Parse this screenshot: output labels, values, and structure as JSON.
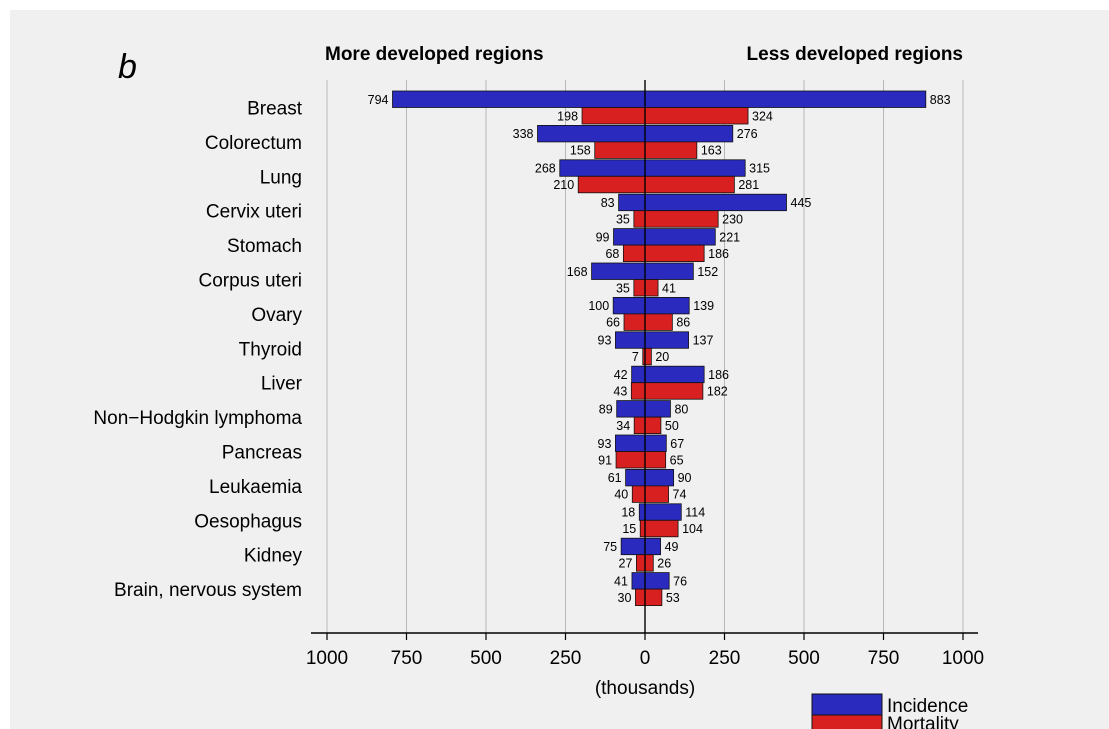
{
  "chart_data": {
    "type": "bar",
    "panel_letter": "b",
    "left_title": "More developed regions",
    "right_title": "Less developed regions",
    "xlabel": "(thousands)",
    "xlim": [
      -1000,
      1000
    ],
    "xticks": [
      -1000,
      -750,
      -500,
      -250,
      0,
      250,
      500,
      750,
      1000
    ],
    "xtick_labels": [
      "1000",
      "750",
      "500",
      "250",
      "0",
      "250",
      "500",
      "750",
      "1000"
    ],
    "grid": true,
    "categories": [
      "Breast",
      "Colorectum",
      "Lung",
      "Cervix uteri",
      "Stomach",
      "Corpus uteri",
      "Ovary",
      "Thyroid",
      "Liver",
      "Non−Hodgkin lymphoma",
      "Pancreas",
      "Leukaemia",
      "Oesophagus",
      "Kidney",
      "Brain, nervous system"
    ],
    "series": [
      {
        "name": "Incidence",
        "region": "More developed regions",
        "values": [
          794,
          338,
          268,
          83,
          99,
          168,
          100,
          93,
          42,
          89,
          93,
          61,
          18,
          75,
          41
        ]
      },
      {
        "name": "Mortality",
        "region": "More developed regions",
        "values": [
          198,
          158,
          210,
          35,
          68,
          35,
          66,
          7,
          43,
          34,
          91,
          40,
          15,
          27,
          30
        ]
      },
      {
        "name": "Incidence",
        "region": "Less developed regions",
        "values": [
          883,
          276,
          315,
          445,
          221,
          152,
          139,
          137,
          186,
          80,
          67,
          90,
          114,
          49,
          76
        ]
      },
      {
        "name": "Mortality",
        "region": "Less developed regions",
        "values": [
          324,
          163,
          281,
          230,
          186,
          41,
          86,
          20,
          182,
          50,
          65,
          74,
          104,
          26,
          53
        ]
      }
    ],
    "legend": {
      "position": "bottom-right",
      "items": [
        {
          "label": "Incidence",
          "color": "#2a2abf"
        },
        {
          "label": "Mortality",
          "color": "#d92020"
        }
      ]
    },
    "colors": {
      "incidence": "#2a2abf",
      "mortality": "#d92020"
    }
  }
}
